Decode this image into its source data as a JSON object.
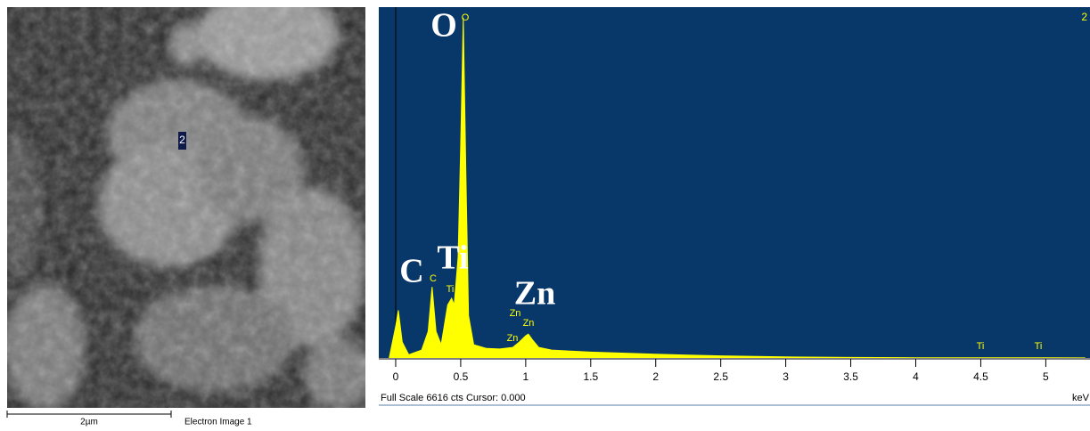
{
  "image": {
    "marker": "2",
    "scale_bar": "2µm",
    "caption": "Electron Image 1"
  },
  "chart_data": {
    "type": "area",
    "x": [
      -0.05,
      0,
      0.02,
      0.05,
      0.1,
      0.2,
      0.25,
      0.28,
      0.31,
      0.35,
      0.4,
      0.43,
      0.45,
      0.48,
      0.5,
      0.52,
      0.54,
      0.56,
      0.6,
      0.7,
      0.8,
      0.9,
      0.95,
      1.0,
      1.02,
      1.05,
      1.1,
      1.2,
      1.5,
      2,
      2.5,
      3,
      3.5,
      4,
      4.5,
      5,
      5.3
    ],
    "values": [
      0,
      600,
      900,
      300,
      60,
      150,
      500,
      1340,
      500,
      250,
      1000,
      1125,
      1000,
      1900,
      4000,
      6415,
      3500,
      800,
      250,
      180,
      170,
      200,
      300,
      420,
      450,
      350,
      200,
      150,
      110,
      70,
      40,
      20,
      10,
      5,
      5,
      3,
      2
    ],
    "color": "#ffff00",
    "background": "#08376a",
    "xlim": [
      -0.13,
      5.34
    ],
    "ylim": [
      0,
      6616
    ],
    "xticks": [
      0,
      0.5,
      1,
      1.5,
      2,
      2.5,
      3,
      3.5,
      4,
      4.5,
      5
    ],
    "x_unit": "keV",
    "status": "Full Scale 6616 cts Cursor: 0.000",
    "corner_label": "2",
    "peak_labels": [
      "O",
      "C",
      "Ti",
      "Zn"
    ],
    "small_labels": [
      "O",
      "C",
      "Ti",
      "Zn",
      "Zn",
      "Zn",
      "Ti",
      "Ti"
    ]
  }
}
